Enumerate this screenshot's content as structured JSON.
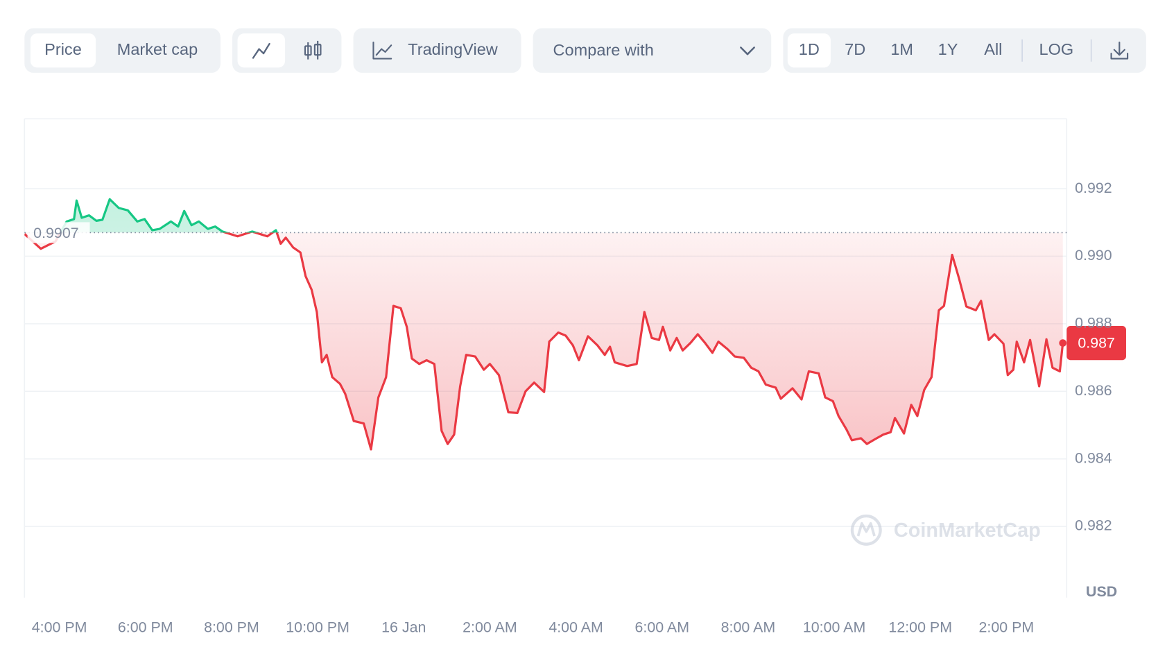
{
  "toolbar": {
    "view": [
      "Price",
      "Market cap"
    ],
    "tradingview": "TradingView",
    "compare": "Compare with",
    "ranges": [
      "1D",
      "7D",
      "1M",
      "1Y",
      "All"
    ],
    "scale": "LOG"
  },
  "chart_data": {
    "type": "line",
    "watermark": "CoinMarketCap",
    "y_unit": "USD",
    "x": [
      15.19,
      15.57,
      15.91,
      16.17,
      16.34,
      16.4,
      16.52,
      16.69,
      16.86,
      17.0,
      17.17,
      17.38,
      17.59,
      17.81,
      17.98,
      18.16,
      18.33,
      18.59,
      18.76,
      18.9,
      19.07,
      19.24,
      19.45,
      19.62,
      19.79,
      20.14,
      20.48,
      20.83,
      21.03,
      21.14,
      21.26,
      21.43,
      21.6,
      21.72,
      21.86,
      21.98,
      22.1,
      22.21,
      22.34,
      22.52,
      22.64,
      22.84,
      23.07,
      23.24,
      23.41,
      23.59,
      23.76,
      23.93,
      24.07,
      24.19,
      24.36,
      24.53,
      24.71,
      24.88,
      25.02,
      25.17,
      25.31,
      25.45,
      25.66,
      25.86,
      26.0,
      26.21,
      26.43,
      26.64,
      26.83,
      27.03,
      27.26,
      27.38,
      27.59,
      27.76,
      27.93,
      28.07,
      28.28,
      28.5,
      28.67,
      28.79,
      28.9,
      29.19,
      29.41,
      29.59,
      29.76,
      29.93,
      30.02,
      30.19,
      30.34,
      30.48,
      30.66,
      30.83,
      31.0,
      31.17,
      31.31,
      31.52,
      31.69,
      31.9,
      32.07,
      32.24,
      32.41,
      32.64,
      32.76,
      33.03,
      33.24,
      33.41,
      33.64,
      33.79,
      33.97,
      34.1,
      34.28,
      34.41,
      34.62,
      34.76,
      34.93,
      35.14,
      35.31,
      35.41,
      35.62,
      35.79,
      35.93,
      36.09,
      36.26,
      36.43,
      36.55,
      36.74,
      36.9,
      37.07,
      37.29,
      37.41,
      37.59,
      37.72,
      37.93,
      38.03,
      38.16,
      38.24,
      38.41,
      38.55,
      38.76,
      38.93,
      39.07,
      39.24,
      39.31
    ],
    "series": [
      {
        "name": "Price",
        "color": "#ea3943",
        "color_above": "#16c784",
        "values": [
          0.99066,
          0.99022,
          0.99044,
          0.99103,
          0.9911,
          0.99165,
          0.99114,
          0.99121,
          0.99105,
          0.99108,
          0.99169,
          0.99143,
          0.99136,
          0.99103,
          0.9911,
          0.99077,
          0.99081,
          0.99103,
          0.99088,
          0.99134,
          0.99092,
          0.99103,
          0.99081,
          0.99088,
          0.99073,
          0.99059,
          0.99073,
          0.99059,
          0.99077,
          0.99037,
          0.99055,
          0.99026,
          0.99011,
          0.98941,
          0.98901,
          0.98835,
          0.98686,
          0.98708,
          0.98642,
          0.98622,
          0.98593,
          0.98512,
          0.98505,
          0.98428,
          0.98582,
          0.98642,
          0.98853,
          0.98846,
          0.98791,
          0.98697,
          0.98681,
          0.98692,
          0.98681,
          0.98483,
          0.98444,
          0.98472,
          0.98615,
          0.98708,
          0.98703,
          0.98664,
          0.98681,
          0.98648,
          0.98538,
          0.98536,
          0.986,
          0.98626,
          0.98598,
          0.98747,
          0.98774,
          0.98765,
          0.98736,
          0.98692,
          0.98763,
          0.98736,
          0.98708,
          0.98732,
          0.98686,
          0.98675,
          0.98681,
          0.98835,
          0.98758,
          0.98752,
          0.98791,
          0.98721,
          0.98758,
          0.98721,
          0.98743,
          0.98769,
          0.98743,
          0.98714,
          0.98747,
          0.98725,
          0.98703,
          0.98699,
          0.9867,
          0.98659,
          0.9862,
          0.98611,
          0.98578,
          0.98609,
          0.98576,
          0.98659,
          0.98653,
          0.98582,
          0.98571,
          0.98527,
          0.98488,
          0.98455,
          0.98461,
          0.98444,
          0.98457,
          0.98472,
          0.98479,
          0.98521,
          0.98475,
          0.9856,
          0.98527,
          0.98604,
          0.98642,
          0.9884,
          0.98853,
          0.99004,
          0.98934,
          0.98851,
          0.9884,
          0.98868,
          0.98752,
          0.98769,
          0.98741,
          0.98648,
          0.98664,
          0.98747,
          0.98686,
          0.98752,
          0.98615,
          0.98754,
          0.9867,
          0.98659,
          0.98743
        ]
      }
    ],
    "reference": {
      "value": 0.9907,
      "label": "0.9907"
    },
    "current_price": {
      "value": 0.98743,
      "label": "0.987"
    },
    "xlim": [
      15.19,
      39.4
    ],
    "ylim": [
      0.97989,
      0.99407
    ],
    "xticks": [
      {
        "value": 16,
        "label": "4:00 PM"
      },
      {
        "value": 18,
        "label": "6:00 PM"
      },
      {
        "value": 20,
        "label": "8:00 PM"
      },
      {
        "value": 22,
        "label": "10:00 PM"
      },
      {
        "value": 24,
        "label": "16 Jan"
      },
      {
        "value": 26,
        "label": "2:00 AM"
      },
      {
        "value": 28,
        "label": "4:00 AM"
      },
      {
        "value": 30,
        "label": "6:00 AM"
      },
      {
        "value": 32,
        "label": "8:00 AM"
      },
      {
        "value": 34,
        "label": "10:00 AM"
      },
      {
        "value": 36,
        "label": "12:00 PM"
      },
      {
        "value": 38,
        "label": "2:00 PM"
      }
    ],
    "yticks": [
      0.982,
      0.984,
      0.986,
      0.988,
      {
        "value": 0.99,
        "label": "0.990"
      },
      0.992
    ],
    "grid": true
  }
}
